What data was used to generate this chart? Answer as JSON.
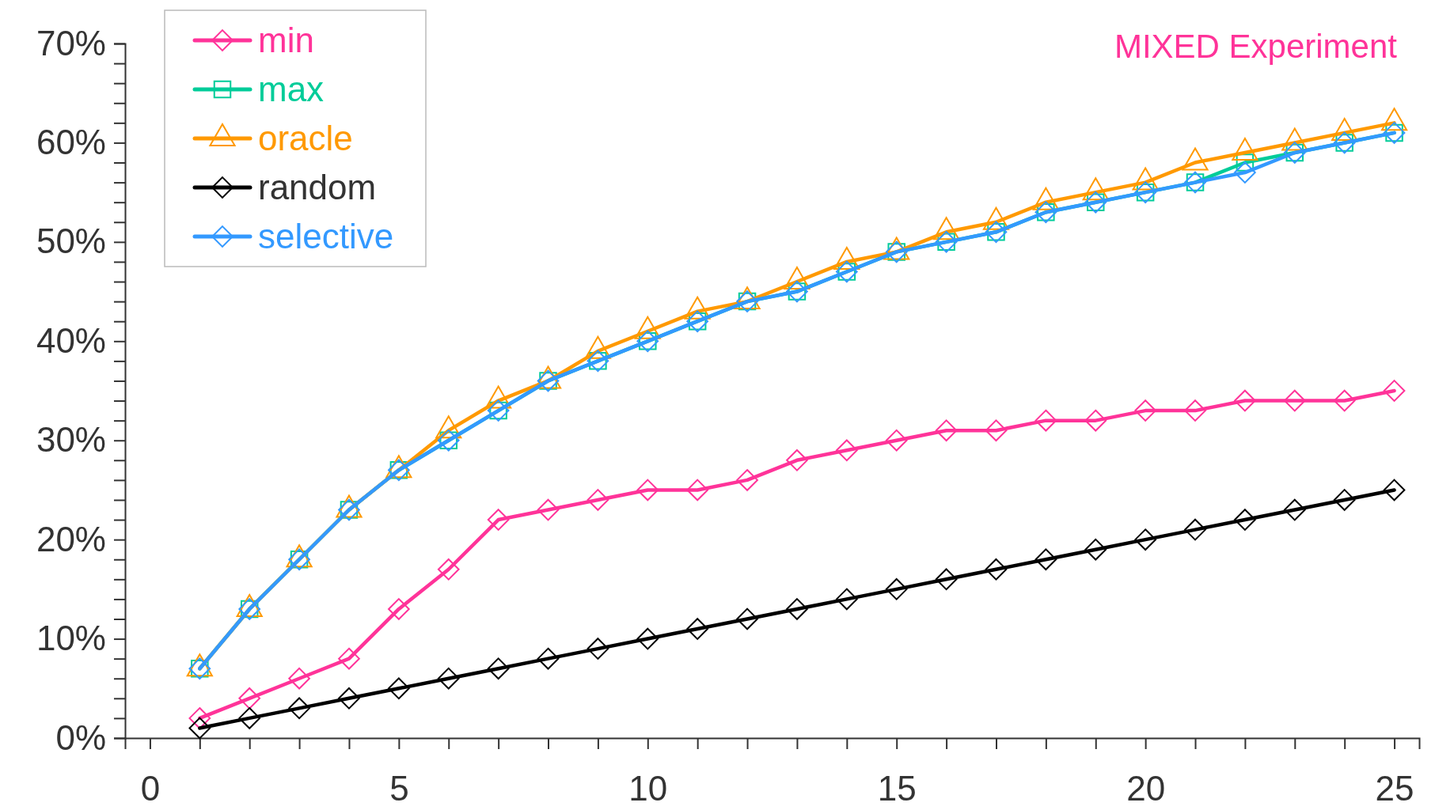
{
  "chart_data": {
    "type": "line",
    "title": "MIXED Experiment",
    "x": [
      1,
      2,
      3,
      4,
      5,
      6,
      7,
      8,
      9,
      10,
      11,
      12,
      13,
      14,
      15,
      16,
      17,
      18,
      19,
      20,
      21,
      22,
      23,
      24,
      25
    ],
    "series": [
      {
        "name": "min",
        "color": "#ff3399",
        "marker": "diamond",
        "values": [
          2,
          4,
          6,
          8,
          13,
          17,
          22,
          23,
          24,
          25,
          25,
          26,
          28,
          29,
          30,
          31,
          31,
          32,
          32,
          33,
          33,
          34,
          34,
          34,
          35
        ]
      },
      {
        "name": "max",
        "color": "#00cc99",
        "marker": "square",
        "values": [
          7,
          13,
          18,
          23,
          27,
          30,
          33,
          36,
          38,
          40,
          42,
          44,
          45,
          47,
          49,
          50,
          51,
          53,
          54,
          55,
          56,
          58,
          59,
          60,
          61
        ]
      },
      {
        "name": "oracle",
        "color": "#ff9900",
        "marker": "triangle",
        "values": [
          7,
          13,
          18,
          23,
          27,
          31,
          34,
          36,
          39,
          41,
          43,
          44,
          46,
          48,
          49,
          51,
          52,
          54,
          55,
          56,
          58,
          59,
          60,
          61,
          62
        ]
      },
      {
        "name": "random",
        "color": "#000000",
        "marker": "diamond",
        "values": [
          1,
          2,
          3,
          4,
          5,
          6,
          7,
          8,
          9,
          10,
          11,
          12,
          13,
          14,
          15,
          16,
          17,
          18,
          19,
          20,
          21,
          22,
          23,
          24,
          25
        ]
      },
      {
        "name": "selective",
        "color": "#3399ff",
        "marker": "diamond",
        "values": [
          7,
          13,
          18,
          23,
          27,
          30,
          33,
          36,
          38,
          40,
          42,
          44,
          45,
          47,
          49,
          50,
          51,
          53,
          54,
          55,
          56,
          57,
          59,
          60,
          61
        ]
      }
    ],
    "xlim": [
      -0.5,
      25.5
    ],
    "xticks": [
      0,
      {
        "value": 1,
        "label": null
      },
      {
        "value": 2,
        "label": null
      },
      {
        "value": 3,
        "label": null
      },
      {
        "value": 4,
        "label": null
      },
      5,
      {
        "value": 6,
        "label": null
      },
      {
        "value": 7,
        "label": null
      },
      {
        "value": 8,
        "label": null
      },
      {
        "value": 9,
        "label": null
      },
      10,
      {
        "value": 11,
        "label": null
      },
      {
        "value": 12,
        "label": null
      },
      {
        "value": 13,
        "label": null
      },
      {
        "value": 14,
        "label": null
      },
      15,
      {
        "value": 16,
        "label": null
      },
      {
        "value": 17,
        "label": null
      },
      {
        "value": 18,
        "label": null
      },
      {
        "value": 19,
        "label": null
      },
      20,
      {
        "value": 21,
        "label": null
      },
      {
        "value": 22,
        "label": null
      },
      {
        "value": 23,
        "label": null
      },
      {
        "value": 24,
        "label": null
      },
      25
    ],
    "ylim": [
      0,
      70
    ],
    "yticks": [
      {
        "value": 0,
        "label": "0%"
      },
      {
        "value": 2,
        "label": null
      },
      {
        "value": 4,
        "label": null
      },
      {
        "value": 6,
        "label": null
      },
      {
        "value": 8,
        "label": null
      },
      {
        "value": 10,
        "label": "10%"
      },
      {
        "value": 12,
        "label": null
      },
      {
        "value": 14,
        "label": null
      },
      {
        "value": 16,
        "label": null
      },
      {
        "value": 18,
        "label": null
      },
      {
        "value": 20,
        "label": "20%"
      },
      {
        "value": 22,
        "label": null
      },
      {
        "value": 24,
        "label": null
      },
      {
        "value": 26,
        "label": null
      },
      {
        "value": 28,
        "label": null
      },
      {
        "value": 30,
        "label": "30%"
      },
      {
        "value": 32,
        "label": null
      },
      {
        "value": 34,
        "label": null
      },
      {
        "value": 36,
        "label": null
      },
      {
        "value": 38,
        "label": null
      },
      {
        "value": 40,
        "label": "40%"
      },
      {
        "value": 42,
        "label": null
      },
      {
        "value": 44,
        "label": null
      },
      {
        "value": 46,
        "label": null
      },
      {
        "value": 48,
        "label": null
      },
      {
        "value": 50,
        "label": "50%"
      },
      {
        "value": 52,
        "label": null
      },
      {
        "value": 54,
        "label": null
      },
      {
        "value": 56,
        "label": null
      },
      {
        "value": 58,
        "label": null
      },
      {
        "value": 60,
        "label": "60%"
      },
      {
        "value": 62,
        "label": null
      },
      {
        "value": 64,
        "label": null
      },
      {
        "value": 66,
        "label": null
      },
      {
        "value": 68,
        "label": null
      },
      {
        "value": 70,
        "label": "70%"
      }
    ],
    "grid": false,
    "legend": "top left",
    "line_style": "solid"
  }
}
